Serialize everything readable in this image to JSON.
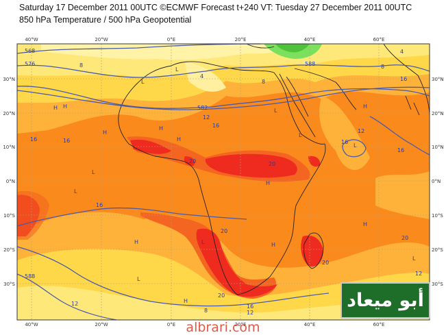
{
  "header": {
    "line1": "Saturday 17 December 2011 00UTC ©ECMWF Forecast t+240 VT: Tuesday 27 December 2011 00UTC",
    "line2": "850 hPa Temperature / 500 hPa Geopotential"
  },
  "map": {
    "top_lon_labels": [
      "40°W",
      "20°W",
      "0°E",
      "20°E",
      "40°E",
      "60°E"
    ],
    "bottom_lon_labels": [
      "40°W",
      "20°W",
      "0°E",
      "20°E",
      "40°E",
      "60°E"
    ],
    "left_lat_labels": [
      "30°N",
      "20°N",
      "10°N",
      "0°N",
      "10°S",
      "20°S",
      "30°S"
    ],
    "right_lat_labels": [
      "30°N",
      "20°N",
      "10°N",
      "0°N",
      "10°S",
      "20°S",
      "30°S"
    ],
    "contour_labels": [
      "568",
      "576",
      "8",
      "582",
      "4",
      "8",
      "588",
      "12",
      "16",
      "16",
      "16",
      "20",
      "20",
      "12",
      "16",
      "16",
      "20",
      "20",
      "588",
      "12",
      "8",
      "16",
      "20",
      "16",
      "12",
      "20",
      "12",
      "4",
      "8",
      "16"
    ],
    "markers": [
      "L",
      "H"
    ],
    "colors": {
      "ocean_light_yellow": "#fff3a8",
      "temp_yellow": "#ffd84a",
      "temp_light_orange": "#ffb23a",
      "temp_orange": "#fb8a1d",
      "temp_dark_orange": "#f36520",
      "temp_red": "#ef2a1e",
      "cold_green": "#7be05d",
      "geopotential_lines": "#4a5aa8",
      "coastlines": "#222222"
    }
  },
  "watermark": {
    "text": "أبو ميعاد"
  },
  "footer": {
    "site": "albrari.com"
  }
}
